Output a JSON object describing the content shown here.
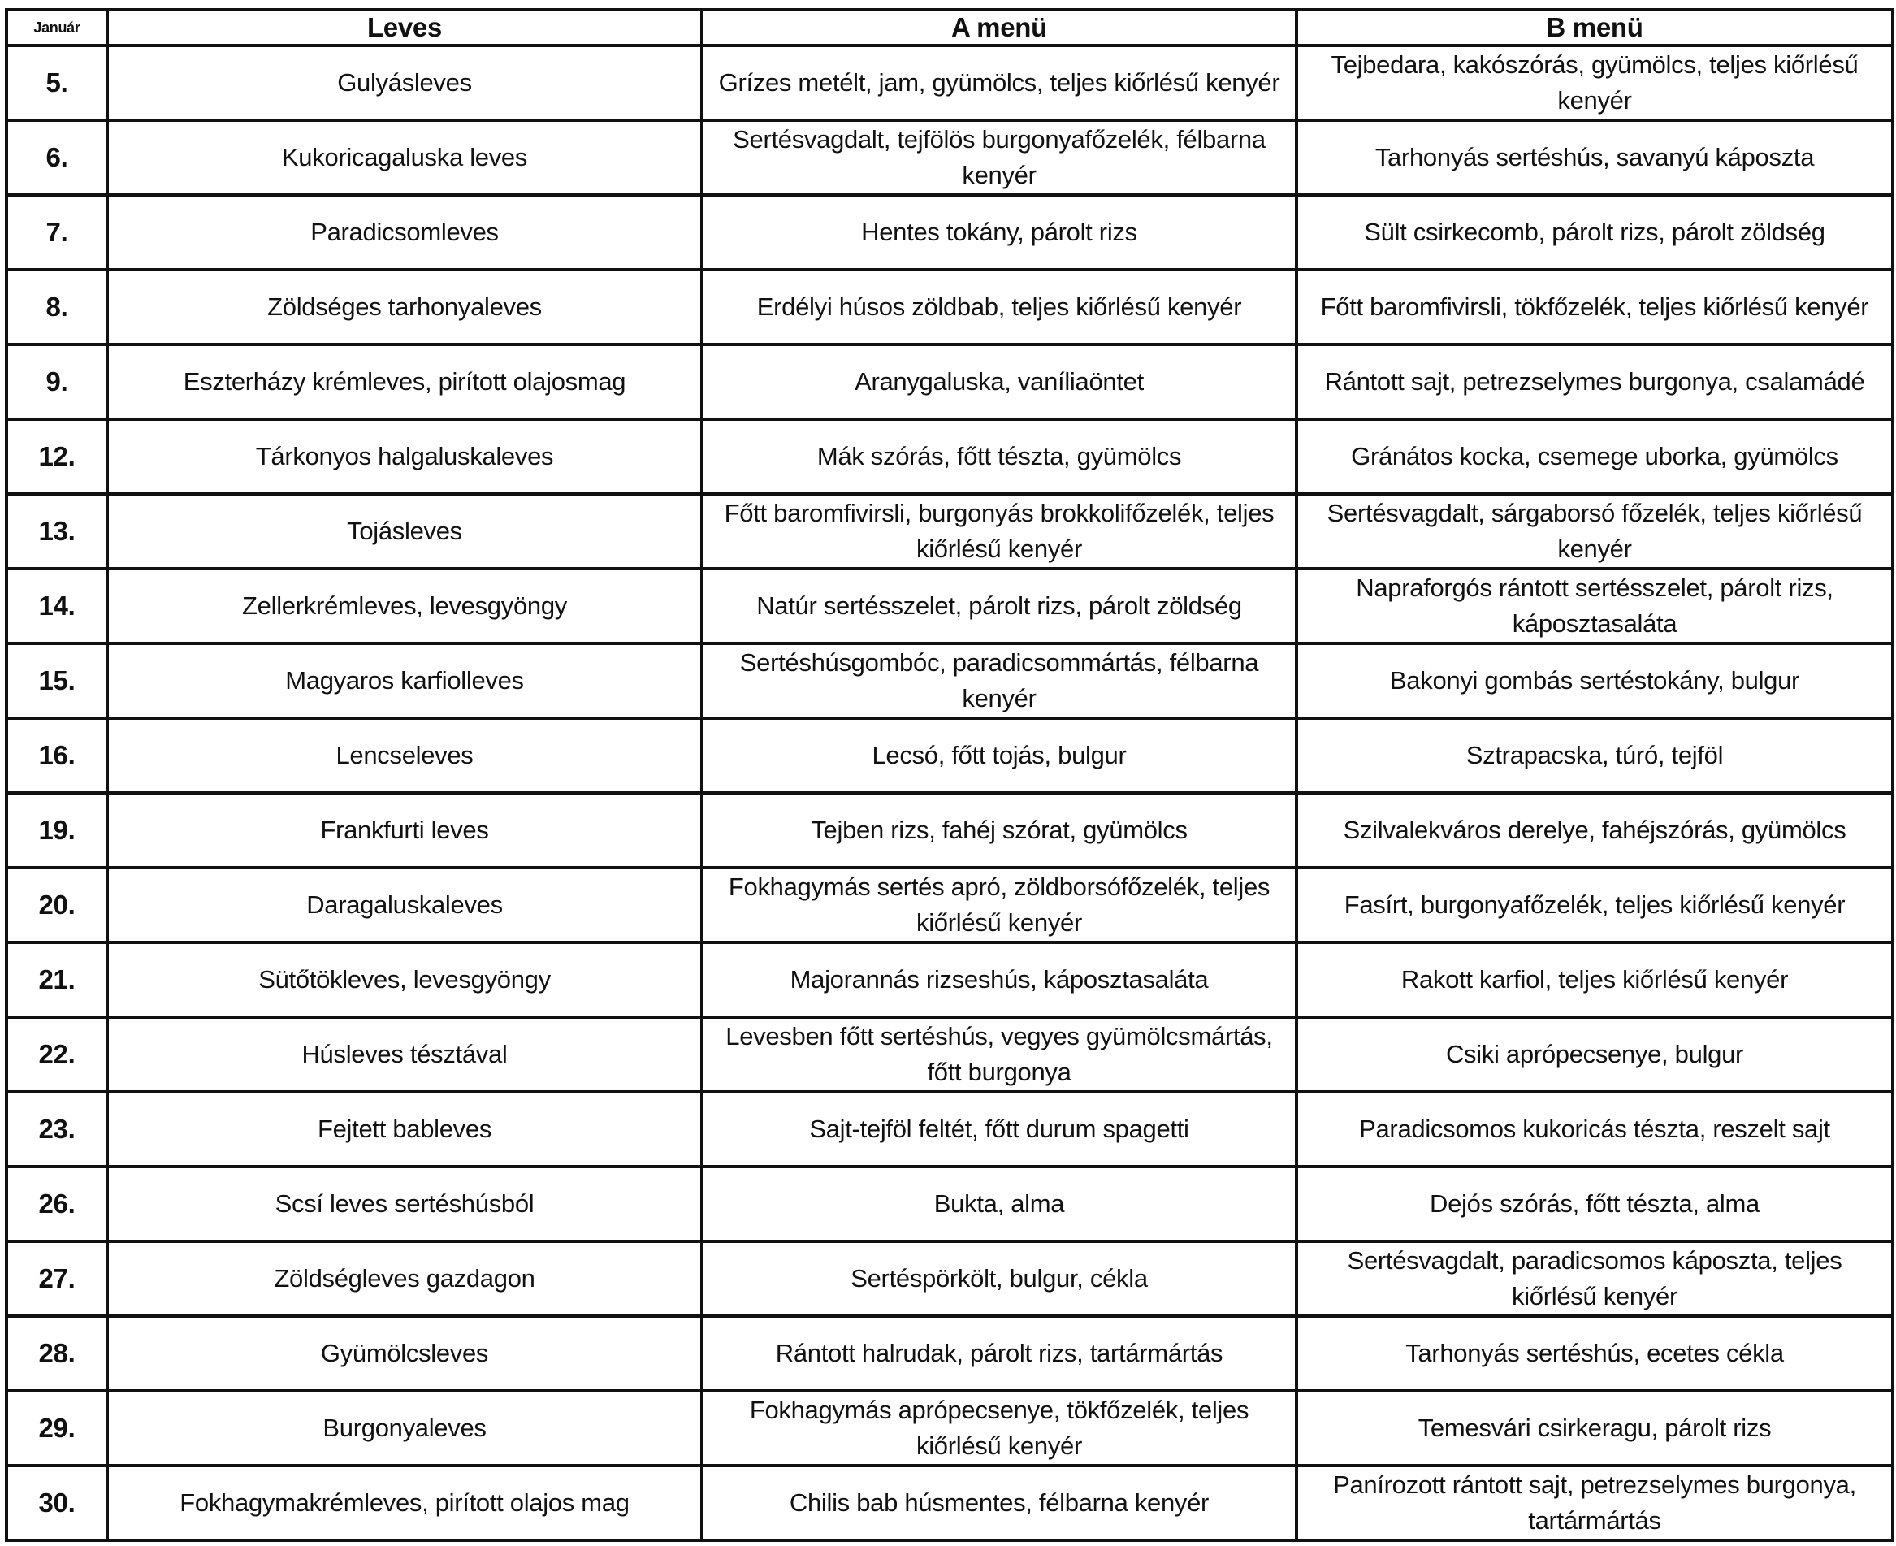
{
  "header": {
    "month": "Január",
    "soup": "Leves",
    "menu_a": "A menü",
    "menu_b": "B menü"
  },
  "rows": [
    {
      "day": "5.",
      "soup": "Gulyásleves",
      "a": "Grízes metélt, jam, gyümölcs, teljes kiőrlésű kenyér",
      "b": "Tejbedara, kakószórás, gyümölcs, teljes kiőrlésű kenyér"
    },
    {
      "day": "6.",
      "soup": "Kukoricagaluska leves",
      "a": "Sertésvagdalt, tejfölös burgonyafőzelék, félbarna kenyér",
      "b": "Tarhonyás sertéshús, savanyú káposzta"
    },
    {
      "day": "7.",
      "soup": "Paradicsomleves",
      "a": "Hentes tokány, párolt rizs",
      "b": "Sült csirkecomb, párolt rizs, párolt zöldség"
    },
    {
      "day": "8.",
      "soup": "Zöldséges tarhonyaleves",
      "a": "Erdélyi húsos zöldbab, teljes kiőrlésű kenyér",
      "b": "Főtt baromfivirsli, tökfőzelék, teljes kiőrlésű kenyér"
    },
    {
      "day": "9.",
      "soup": "Eszterházy krémleves, pirított olajosmag",
      "a": "Aranygaluska, vaníliaöntet",
      "b": "Rántott sajt, petrezselymes burgonya, csalamádé"
    },
    {
      "day": "12.",
      "soup": "Tárkonyos halgaluskaleves",
      "a": "Mák szórás, főtt tészta, gyümölcs",
      "b": "Gránátos kocka, csemege uborka, gyümölcs"
    },
    {
      "day": "13.",
      "soup": "Tojásleves",
      "a": "Főtt baromfivirsli, burgonyás brokkolifőzelék, teljes kiőrlésű kenyér",
      "b": "Sertésvagdalt, sárgaborsó főzelék, teljes kiőrlésű kenyér"
    },
    {
      "day": "14.",
      "soup": "Zellerkrémleves, levesgyöngy",
      "a": "Natúr sertésszelet, párolt rizs, párolt zöldség",
      "b": "Napraforgós rántott sertésszelet, párolt rizs, káposztasaláta"
    },
    {
      "day": "15.",
      "soup": "Magyaros karfiolleves",
      "a": "Sertéshúsgombóc, paradicsommártás, félbarna kenyér",
      "b": "Bakonyi gombás sertéstokány, bulgur"
    },
    {
      "day": "16.",
      "soup": "Lencseleves",
      "a": "Lecsó, főtt tojás, bulgur",
      "b": "Sztrapacska, túró, tejföl"
    },
    {
      "day": "19.",
      "soup": "Frankfurti leves",
      "a": "Tejben rizs, fahéj szórat, gyümölcs",
      "b": "Szilvalekváros derelye, fahéjszórás, gyümölcs"
    },
    {
      "day": "20.",
      "soup": "Daragaluskaleves",
      "a": "Fokhagymás sertés apró, zöldborsófőzelék, teljes kiőrlésű kenyér",
      "b": "Fasírt, burgonyafőzelék, teljes kiőrlésű kenyér"
    },
    {
      "day": "21.",
      "soup": "Sütőtökleves, levesgyöngy",
      "a": "Majorannás rizseshús, káposztasaláta",
      "b": "Rakott karfiol, teljes kiőrlésű kenyér"
    },
    {
      "day": "22.",
      "soup": "Húsleves tésztával",
      "a": "Levesben főtt sertéshús, vegyes gyümölcsmártás, főtt burgonya",
      "b": "Csiki aprópecsenye, bulgur"
    },
    {
      "day": "23.",
      "soup": "Fejtett bableves",
      "a": "Sajt-tejföl feltét, főtt durum spagetti",
      "b": "Paradicsomos kukoricás tészta, reszelt sajt"
    },
    {
      "day": "26.",
      "soup": "Scsí leves sertéshúsból",
      "a": "Bukta, alma",
      "b": "Dejós szórás, főtt tészta, alma"
    },
    {
      "day": "27.",
      "soup": "Zöldségleves gazdagon",
      "a": "Sertéspörkölt, bulgur, cékla",
      "b": "Sertésvagdalt, paradicsomos káposzta, teljes kiőrlésű kenyér"
    },
    {
      "day": "28.",
      "soup": "Gyümölcsleves",
      "a": "Rántott halrudak, párolt rizs, tartármártás",
      "b": "Tarhonyás sertéshús, ecetes cékla"
    },
    {
      "day": "29.",
      "soup": "Burgonyaleves",
      "a": "Fokhagymás aprópecsenye, tökfőzelék, teljes kiőrlésű kenyér",
      "b": "Temesvári csirkeragu, párolt rizs"
    },
    {
      "day": "30.",
      "soup": "Fokhagymakrémleves, pirított olajos mag",
      "a": "Chilis bab húsmentes, félbarna kenyér",
      "b": "Panírozott rántott sajt, petrezselymes burgonya, tartármártás"
    }
  ]
}
